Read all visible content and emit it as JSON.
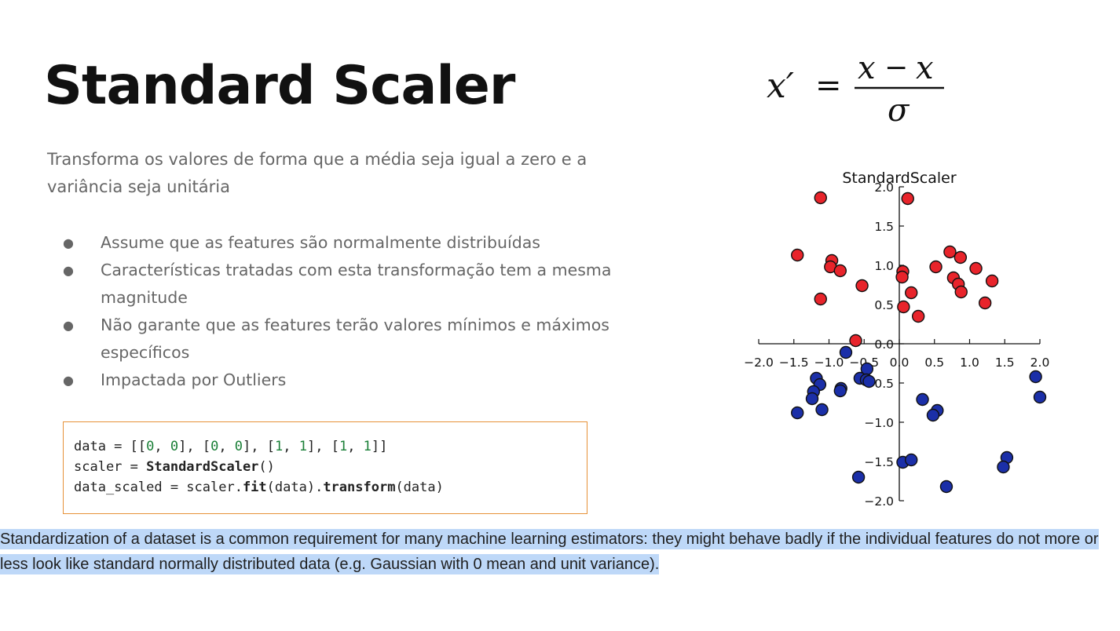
{
  "slide": {
    "title": "Standard Scaler",
    "subtitle": "Transforma os valores de forma que a média seja igual a zero e a variância seja unitária",
    "bullets": [
      "Assume que as features são normalmente distribuídas",
      "Características tratadas com esta transformação tem a mesma magnitude",
      "Não garante que as features terão valores mínimos e máximos específicos",
      "Impactada por Outliers"
    ],
    "code": {
      "line1": {
        "a": "data = [[",
        "n1": "0",
        "b": ", ",
        "n2": "0",
        "c": "], [",
        "n3": "0",
        "d": ", ",
        "n4": "0",
        "e": "], [",
        "n5": "1",
        "f": ", ",
        "n6": "1",
        "g": "], [",
        "n7": "1",
        "h": ", ",
        "n8": "1",
        "i": "]]"
      },
      "line2": {
        "a": "scaler = ",
        "bold": "StandardScaler",
        "b": "()"
      },
      "line3": {
        "a": "data_scaled = scaler.",
        "bold1": "fit",
        "b": "(data).",
        "bold2": "transform",
        "c": "(data)"
      }
    },
    "formula": {
      "lhs": "x′",
      "eq": "=",
      "num_x": "x",
      "minus": "−",
      "num_xbar": "x",
      "bar": "¯",
      "den": "σ"
    },
    "note": "Standardization of a dataset is a common requirement for many machine learning estimators: they might behave badly if the individual features do not more or less look like standard normally distributed data (e.g. Gaussian with 0 mean and unit variance)."
  },
  "chart_data": {
    "type": "scatter",
    "title": "StandardScaler",
    "xlim": [
      -2.0,
      2.0
    ],
    "ylim": [
      -2.0,
      2.0
    ],
    "xticks": [
      "−2.0",
      "−1.5",
      "−1.0",
      "−0.5",
      "0.0",
      "0.5",
      "1.0",
      "1.5",
      "2.0"
    ],
    "yticks": [
      "−2.0",
      "−1.5",
      "−1.0",
      "−0.5",
      "0.0",
      "0.5",
      "1.0",
      "1.5",
      "2.0"
    ],
    "xtick_values": [
      -2.0,
      -1.5,
      -1.0,
      -0.5,
      0.0,
      0.5,
      1.0,
      1.5,
      2.0
    ],
    "ytick_values": [
      -2.0,
      -1.5,
      -1.0,
      -0.5,
      0.0,
      0.5,
      1.0,
      1.5,
      2.0
    ],
    "spines": "centered",
    "grid": false,
    "series": [
      {
        "color": "#e8242b",
        "points": [
          [
            -1.12,
            1.86
          ],
          [
            0.12,
            1.85
          ],
          [
            -1.45,
            1.13
          ],
          [
            -0.96,
            1.06
          ],
          [
            -0.98,
            0.98
          ],
          [
            -0.84,
            0.93
          ],
          [
            0.05,
            0.92
          ],
          [
            0.04,
            0.85
          ],
          [
            0.72,
            1.17
          ],
          [
            0.87,
            1.1
          ],
          [
            0.52,
            0.98
          ],
          [
            1.09,
            0.96
          ],
          [
            0.77,
            0.84
          ],
          [
            1.32,
            0.8
          ],
          [
            0.84,
            0.76
          ],
          [
            0.88,
            0.66
          ],
          [
            -0.53,
            0.74
          ],
          [
            0.17,
            0.65
          ],
          [
            -1.12,
            0.57
          ],
          [
            1.22,
            0.52
          ],
          [
            0.06,
            0.47
          ],
          [
            0.27,
            0.35
          ],
          [
            -0.62,
            0.04
          ]
        ]
      },
      {
        "color": "#1b2fa8",
        "points": [
          [
            -0.76,
            -0.11
          ],
          [
            -0.46,
            -0.32
          ],
          [
            -1.18,
            -0.44
          ],
          [
            -1.13,
            -0.52
          ],
          [
            -0.83,
            -0.57
          ],
          [
            -0.84,
            -0.6
          ],
          [
            -0.56,
            -0.44
          ],
          [
            -0.47,
            -0.46
          ],
          [
            -0.43,
            -0.48
          ],
          [
            -1.22,
            -0.61
          ],
          [
            -1.24,
            -0.7
          ],
          [
            -1.45,
            -0.88
          ],
          [
            -1.1,
            -0.84
          ],
          [
            0.33,
            -0.71
          ],
          [
            0.54,
            -0.85
          ],
          [
            0.48,
            -0.91
          ],
          [
            1.94,
            -0.42
          ],
          [
            2.0,
            -0.68
          ],
          [
            0.05,
            -1.51
          ],
          [
            0.17,
            -1.48
          ],
          [
            -0.58,
            -1.7
          ],
          [
            0.67,
            -1.82
          ],
          [
            1.53,
            -1.45
          ],
          [
            1.48,
            -1.57
          ]
        ]
      }
    ]
  }
}
